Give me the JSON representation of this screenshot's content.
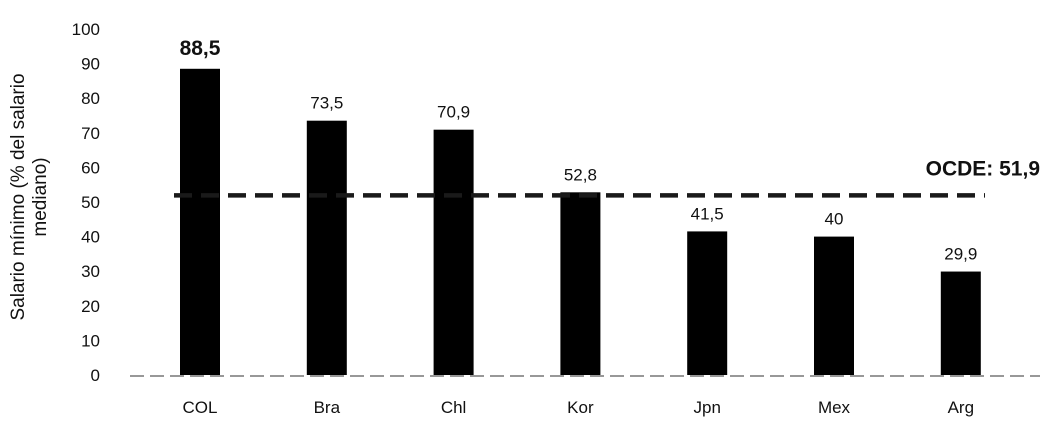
{
  "chart_data": {
    "type": "bar",
    "title": "",
    "xlabel": "",
    "ylabel_lines": [
      "Salario mínimo (% del salario",
      "mediano)"
    ],
    "categories": [
      "COL",
      "Bra",
      "Chl",
      "Kor",
      "Jpn",
      "Mex",
      "Arg"
    ],
    "values": [
      88.5,
      73.5,
      70.9,
      52.8,
      41.5,
      40,
      29.9
    ],
    "value_labels": [
      "88,5",
      "73,5",
      "70,9",
      "52,8",
      "41,5",
      "40",
      "29,9"
    ],
    "highlight_index": 0,
    "ylim": [
      0,
      100
    ],
    "yticks": [
      "0",
      "10",
      "20",
      "30",
      "40",
      "50",
      "60",
      "70",
      "80",
      "90",
      "100"
    ],
    "grid": false,
    "reference_line": {
      "value": 51.9,
      "label": "OCDE: 51,9",
      "style": "dashed"
    },
    "bar_color": "#000000"
  }
}
